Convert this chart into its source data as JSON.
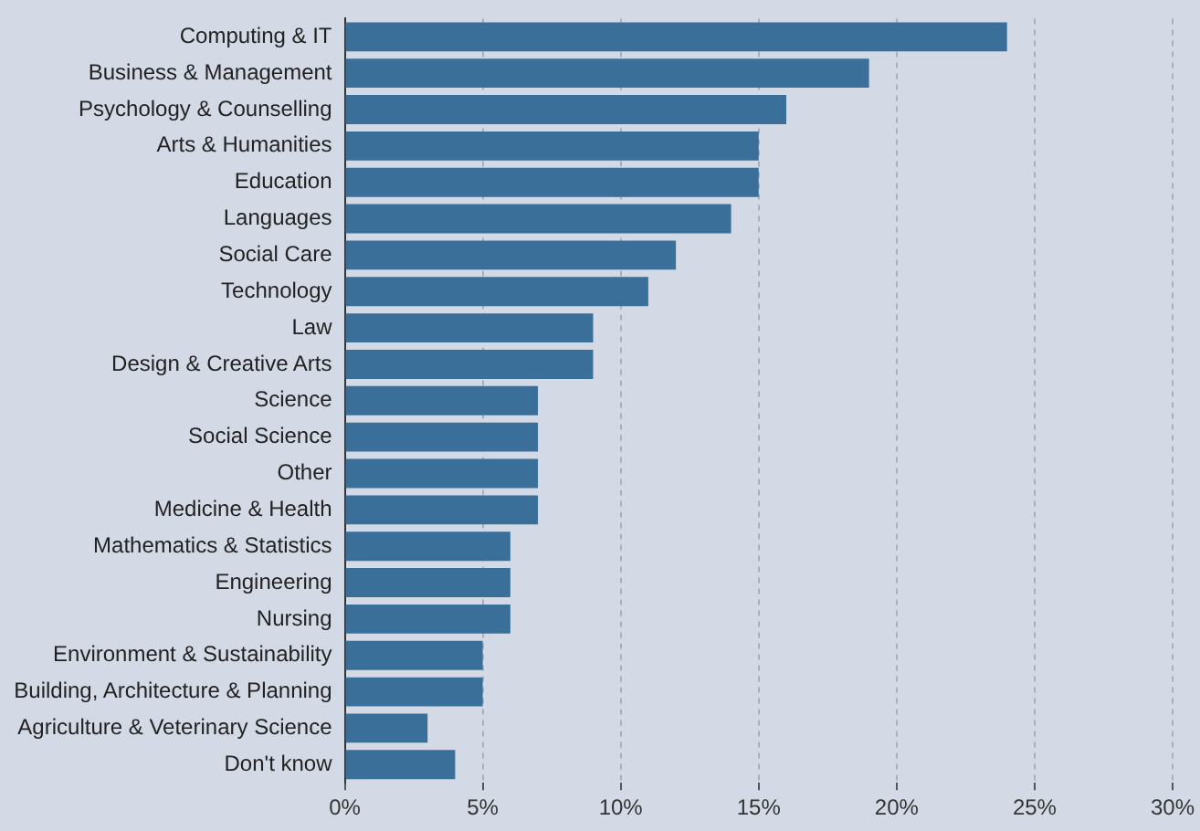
{
  "chart_data": {
    "type": "bar",
    "orientation": "horizontal",
    "categories": [
      "Computing & IT",
      "Business & Management",
      "Psychology & Counselling",
      "Arts & Humanities",
      "Education",
      "Languages",
      "Social Care",
      "Technology",
      "Law",
      "Design & Creative Arts",
      "Science",
      "Social Science",
      "Other",
      "Medicine & Health",
      "Mathematics & Statistics",
      "Engineering",
      "Nursing",
      "Environment & Sustainability",
      "Building, Architecture & Planning",
      "Agriculture & Veterinary Science",
      "Don't know"
    ],
    "values": [
      24,
      19,
      16,
      15,
      15,
      14,
      12,
      11,
      9,
      9,
      7,
      7,
      7,
      7,
      6,
      6,
      6,
      5,
      5,
      3,
      4
    ],
    "color": "#3a6f99",
    "xlim": [
      0,
      30
    ],
    "xticks": [
      {
        "value": 0,
        "label": "0%"
      },
      {
        "value": 5,
        "label": "5%"
      },
      {
        "value": 10,
        "label": "10%"
      },
      {
        "value": 15,
        "label": "15%"
      },
      {
        "value": 20,
        "label": "20%"
      },
      {
        "value": 25,
        "label": "25%"
      },
      {
        "value": 30,
        "label": "30%"
      }
    ],
    "grid": "x",
    "legend": false
  }
}
